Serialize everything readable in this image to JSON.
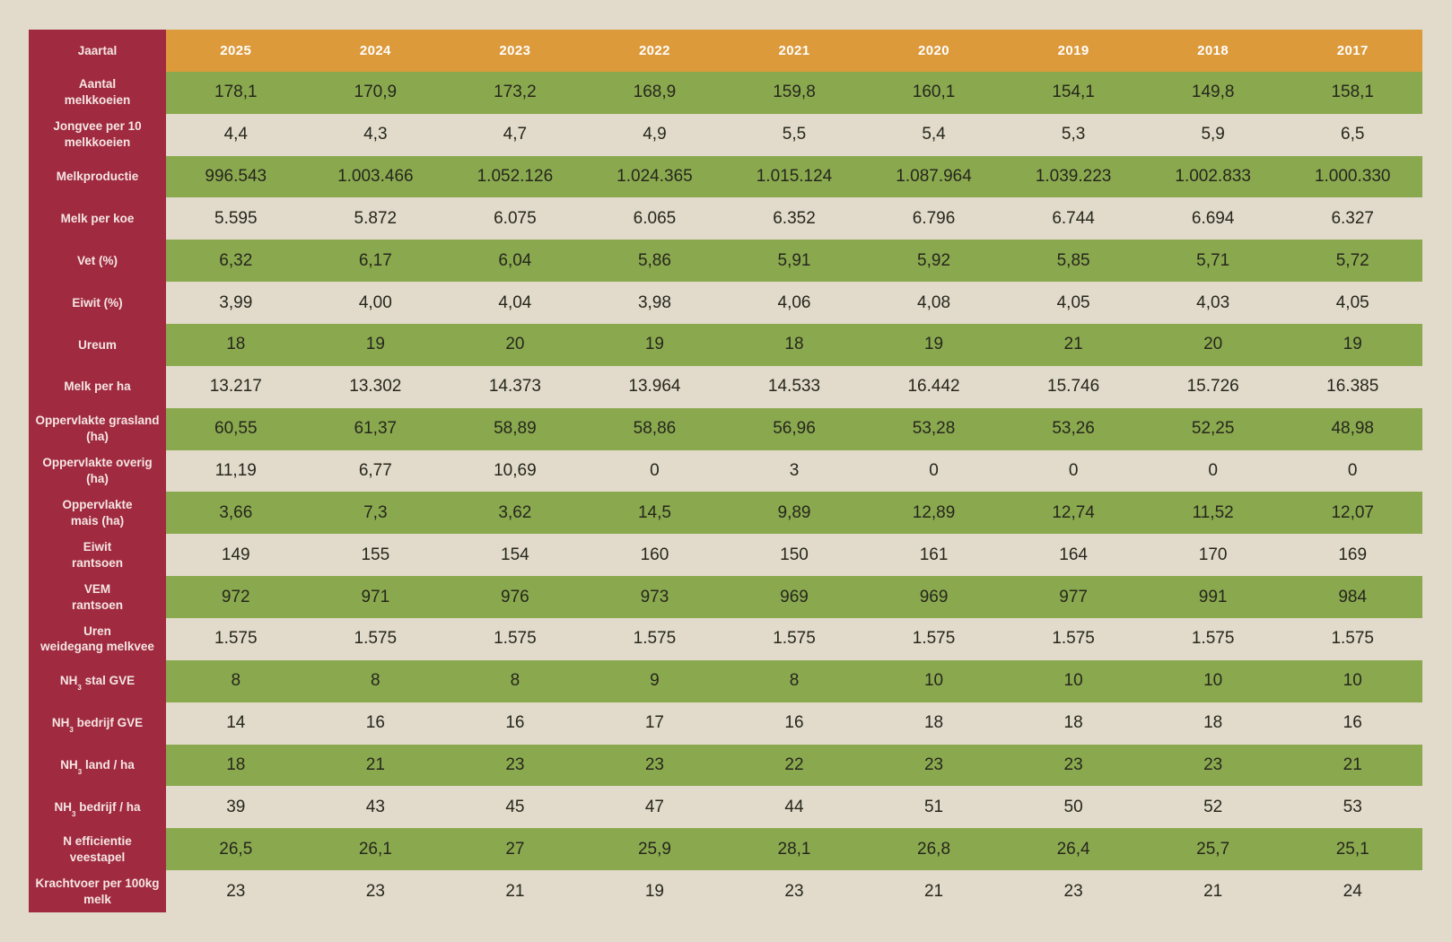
{
  "colors": {
    "label_column_bg": "#a02a40",
    "header_row_bg": "#dc9a3b",
    "green_row_bg": "#8aa94f",
    "beige_bg": "#e2dbcb",
    "value_text": "#26261c",
    "label_text": "#f4e6e3",
    "header_text": "#ffffff"
  },
  "chart_data": {
    "type": "table",
    "title": "",
    "corner_label": "Jaartal",
    "categories": [
      "2025",
      "2024",
      "2023",
      "2022",
      "2021",
      "2020",
      "2019",
      "2018",
      "2017"
    ],
    "series": [
      {
        "name": "Aantal melkkoeien",
        "label_lines": [
          [
            "Aantal"
          ],
          [
            "melkkoeien"
          ]
        ],
        "values": [
          "178,1",
          "170,9",
          "173,2",
          "168,9",
          "159,8",
          "160,1",
          "154,1",
          "149,8",
          "158,1"
        ]
      },
      {
        "name": "Jongvee per 10 melkkoeien",
        "label_lines": [
          [
            "Jongvee per 10"
          ],
          [
            "melkkoeien"
          ]
        ],
        "values": [
          "4,4",
          "4,3",
          "4,7",
          "4,9",
          "5,5",
          "5,4",
          "5,3",
          "5,9",
          "6,5"
        ]
      },
      {
        "name": "Melkproductie",
        "label_lines": [
          [
            "Melkproductie"
          ]
        ],
        "values": [
          "996.543",
          "1.003.466",
          "1.052.126",
          "1.024.365",
          "1.015.124",
          "1.087.964",
          "1.039.223",
          "1.002.833",
          "1.000.330"
        ]
      },
      {
        "name": "Melk per koe",
        "label_lines": [
          [
            "Melk per koe"
          ]
        ],
        "values": [
          "5.595",
          "5.872",
          "6.075",
          "6.065",
          "6.352",
          "6.796",
          "6.744",
          "6.694",
          "6.327"
        ]
      },
      {
        "name": "Vet (%)",
        "label_lines": [
          [
            "Vet (%)"
          ]
        ],
        "values": [
          "6,32",
          "6,17",
          "6,04",
          "5,86",
          "5,91",
          "5,92",
          "5,85",
          "5,71",
          "5,72"
        ]
      },
      {
        "name": "Eiwit (%)",
        "label_lines": [
          [
            "Eiwit (%)"
          ]
        ],
        "values": [
          "3,99",
          "4,00",
          "4,04",
          "3,98",
          "4,06",
          "4,08",
          "4,05",
          "4,03",
          "4,05"
        ]
      },
      {
        "name": "Ureum",
        "label_lines": [
          [
            "Ureum"
          ]
        ],
        "values": [
          "18",
          "19",
          "20",
          "19",
          "18",
          "19",
          "21",
          "20",
          "19"
        ]
      },
      {
        "name": "Melk per ha",
        "label_lines": [
          [
            "Melk per ha"
          ]
        ],
        "values": [
          "13.217",
          "13.302",
          "14.373",
          "13.964",
          "14.533",
          "16.442",
          "15.746",
          "15.726",
          "16.385"
        ]
      },
      {
        "name": "Oppervlakte grasland (ha)",
        "label_lines": [
          [
            "Oppervlakte grasland"
          ],
          [
            "(ha)"
          ]
        ],
        "values": [
          "60,55",
          "61,37",
          "58,89",
          "58,86",
          "56,96",
          "53,28",
          "53,26",
          "52,25",
          "48,98"
        ]
      },
      {
        "name": "Oppervlakte overig (ha)",
        "label_lines": [
          [
            "Oppervlakte overig"
          ],
          [
            "(ha)"
          ]
        ],
        "values": [
          "11,19",
          "6,77",
          "10,69",
          "0",
          "3",
          "0",
          "0",
          "0",
          "0"
        ]
      },
      {
        "name": "Oppervlakte mais (ha)",
        "label_lines": [
          [
            "Oppervlakte"
          ],
          [
            "mais (ha)"
          ]
        ],
        "values": [
          "3,66",
          "7,3",
          "3,62",
          "14,5",
          "9,89",
          "12,89",
          "12,74",
          "11,52",
          "12,07"
        ]
      },
      {
        "name": "Eiwit rantsoen",
        "label_lines": [
          [
            "Eiwit"
          ],
          [
            "rantsoen"
          ]
        ],
        "values": [
          "149",
          "155",
          "154",
          "160",
          "150",
          "161",
          "164",
          "170",
          "169"
        ]
      },
      {
        "name": "VEM rantsoen",
        "label_lines": [
          [
            "VEM"
          ],
          [
            "rantsoen"
          ]
        ],
        "values": [
          "972",
          "971",
          "976",
          "973",
          "969",
          "969",
          "977",
          "991",
          "984"
        ]
      },
      {
        "name": "Uren weidegang melkvee",
        "label_lines": [
          [
            "Uren"
          ],
          [
            "weidegang melkvee"
          ]
        ],
        "values": [
          "1.575",
          "1.575",
          "1.575",
          "1.575",
          "1.575",
          "1.575",
          "1.575",
          "1.575",
          "1.575"
        ]
      },
      {
        "name": "NH3 stal GVE",
        "label_lines": [
          [
            "NH",
            {
              "sub": "3"
            },
            " stal GVE"
          ]
        ],
        "values": [
          "8",
          "8",
          "8",
          "9",
          "8",
          "10",
          "10",
          "10",
          "10"
        ]
      },
      {
        "name": "NH3 bedrijf GVE",
        "label_lines": [
          [
            "NH",
            {
              "sub": "3"
            },
            " bedrijf GVE"
          ]
        ],
        "values": [
          "14",
          "16",
          "16",
          "17",
          "16",
          "18",
          "18",
          "18",
          "16"
        ]
      },
      {
        "name": "NH3 land / ha",
        "label_lines": [
          [
            "NH",
            {
              "sub": "3"
            },
            " land / ha"
          ]
        ],
        "values": [
          "18",
          "21",
          "23",
          "23",
          "22",
          "23",
          "23",
          "23",
          "21"
        ]
      },
      {
        "name": "NH3 bedrijf / ha",
        "label_lines": [
          [
            "NH",
            {
              "sub": "3"
            },
            " bedrijf / ha"
          ]
        ],
        "values": [
          "39",
          "43",
          "45",
          "47",
          "44",
          "51",
          "50",
          "52",
          "53"
        ]
      },
      {
        "name": "N efficientie veestapel",
        "label_lines": [
          [
            "N efficientie"
          ],
          [
            "veestapel"
          ]
        ],
        "values": [
          "26,5",
          "26,1",
          "27",
          "25,9",
          "28,1",
          "26,8",
          "26,4",
          "25,7",
          "25,1"
        ]
      },
      {
        "name": "Krachtvoer per 100kg melk",
        "label_lines": [
          [
            "Krachtvoer per 100kg"
          ],
          [
            "melk"
          ]
        ],
        "values": [
          "23",
          "23",
          "21",
          "19",
          "23",
          "21",
          "23",
          "21",
          "24"
        ]
      }
    ]
  }
}
